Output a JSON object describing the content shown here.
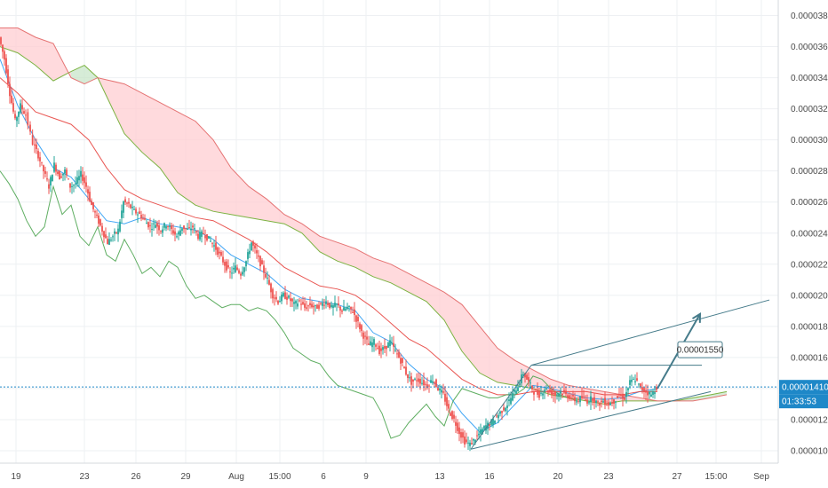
{
  "chart_data": {
    "type": "candlestick",
    "title": "",
    "xlabel": "",
    "ylabel": "",
    "ylim": [
      9.2e-06,
      3.9e-05
    ],
    "grid": true,
    "y_ticks": [
      "0.00003800",
      "0.00003600",
      "0.00003400",
      "0.00003200",
      "0.00003000",
      "0.00002800",
      "0.00002600",
      "0.00002400",
      "0.00002200",
      "0.00002000",
      "0.00001800",
      "0.00001600",
      "0.00001400",
      "0.00001200",
      "0.00001000"
    ],
    "x_ticks": [
      "19",
      "23",
      "26",
      "29",
      "Aug",
      "15:00",
      "6",
      "9",
      "13",
      "16",
      "20",
      "23",
      "27",
      "15:00",
      "Sep"
    ],
    "current_price": "0.00001410",
    "countdown": "01:33:53",
    "annotation_label": "0.00001550",
    "close_path": [
      [
        0,
        3.66e-05
      ],
      [
        6,
        3.52e-05
      ],
      [
        12,
        3.3e-05
      ],
      [
        18,
        3.12e-05
      ],
      [
        24,
        3.22e-05
      ],
      [
        30,
        3.16e-05
      ],
      [
        38,
        2.98e-05
      ],
      [
        44,
        2.9e-05
      ],
      [
        50,
        2.8e-05
      ],
      [
        56,
        2.7e-05
      ],
      [
        62,
        2.84e-05
      ],
      [
        68,
        2.76e-05
      ],
      [
        74,
        2.8e-05
      ],
      [
        80,
        2.7e-05
      ],
      [
        86,
        2.72e-05
      ],
      [
        92,
        2.78e-05
      ],
      [
        98,
        2.7e-05
      ],
      [
        104,
        2.58e-05
      ],
      [
        110,
        2.5e-05
      ],
      [
        116,
        2.42e-05
      ],
      [
        122,
        2.34e-05
      ],
      [
        128,
        2.38e-05
      ],
      [
        134,
        2.42e-05
      ],
      [
        140,
        2.6e-05
      ],
      [
        146,
        2.58e-05
      ],
      [
        152,
        2.54e-05
      ],
      [
        158,
        2.52e-05
      ],
      [
        164,
        2.48e-05
      ],
      [
        170,
        2.44e-05
      ],
      [
        176,
        2.46e-05
      ],
      [
        182,
        2.42e-05
      ],
      [
        188,
        2.46e-05
      ],
      [
        194,
        2.42e-05
      ],
      [
        200,
        2.38e-05
      ],
      [
        206,
        2.44e-05
      ],
      [
        212,
        2.42e-05
      ],
      [
        218,
        2.44e-05
      ],
      [
        224,
        2.38e-05
      ],
      [
        230,
        2.4e-05
      ],
      [
        236,
        2.36e-05
      ],
      [
        242,
        2.32e-05
      ],
      [
        248,
        2.26e-05
      ],
      [
        254,
        2.2e-05
      ],
      [
        260,
        2.14e-05
      ],
      [
        266,
        2.18e-05
      ],
      [
        272,
        2.14e-05
      ],
      [
        278,
        2.22e-05
      ],
      [
        284,
        2.34e-05
      ],
      [
        290,
        2.26e-05
      ],
      [
        296,
        2.18e-05
      ],
      [
        302,
        2.1e-05
      ],
      [
        308,
        2e-05
      ],
      [
        314,
        1.96e-05
      ],
      [
        320,
        2e-05
      ],
      [
        326,
        1.98e-05
      ],
      [
        332,
        1.94e-05
      ],
      [
        338,
        1.96e-05
      ],
      [
        344,
        1.92e-05
      ],
      [
        350,
        1.94e-05
      ],
      [
        356,
        1.92e-05
      ],
      [
        362,
        1.94e-05
      ],
      [
        368,
        1.96e-05
      ],
      [
        374,
        1.92e-05
      ],
      [
        380,
        1.94e-05
      ],
      [
        386,
        1.9e-05
      ],
      [
        392,
        1.92e-05
      ],
      [
        398,
        1.9e-05
      ],
      [
        404,
        1.82e-05
      ],
      [
        410,
        1.74e-05
      ],
      [
        416,
        1.68e-05
      ],
      [
        422,
        1.7e-05
      ],
      [
        428,
        1.64e-05
      ],
      [
        434,
        1.66e-05
      ],
      [
        440,
        1.7e-05
      ],
      [
        446,
        1.64e-05
      ],
      [
        452,
        1.58e-05
      ],
      [
        458,
        1.5e-05
      ],
      [
        464,
        1.44e-05
      ],
      [
        470,
        1.46e-05
      ],
      [
        476,
        1.44e-05
      ],
      [
        482,
        1.42e-05
      ],
      [
        488,
        1.46e-05
      ],
      [
        494,
        1.4e-05
      ],
      [
        500,
        1.36e-05
      ],
      [
        506,
        1.26e-05
      ],
      [
        512,
        1.2e-05
      ],
      [
        518,
        1.12e-05
      ],
      [
        524,
        1.06e-05
      ],
      [
        530,
        1.04e-05
      ],
      [
        536,
        1.08e-05
      ],
      [
        542,
        1.12e-05
      ],
      [
        548,
        1.16e-05
      ],
      [
        554,
        1.18e-05
      ],
      [
        560,
        1.22e-05
      ],
      [
        566,
        1.26e-05
      ],
      [
        572,
        1.3e-05
      ],
      [
        578,
        1.36e-05
      ],
      [
        584,
        1.42e-05
      ],
      [
        590,
        1.5e-05
      ],
      [
        596,
        1.44e-05
      ],
      [
        602,
        1.38e-05
      ],
      [
        608,
        1.36e-05
      ],
      [
        614,
        1.4e-05
      ],
      [
        620,
        1.38e-05
      ],
      [
        626,
        1.36e-05
      ],
      [
        632,
        1.38e-05
      ],
      [
        638,
        1.36e-05
      ],
      [
        644,
        1.34e-05
      ],
      [
        650,
        1.32e-05
      ],
      [
        656,
        1.34e-05
      ],
      [
        662,
        1.32e-05
      ],
      [
        668,
        1.34e-05
      ],
      [
        674,
        1.3e-05
      ],
      [
        680,
        1.32e-05
      ],
      [
        686,
        1.3e-05
      ],
      [
        692,
        1.32e-05
      ],
      [
        698,
        1.36e-05
      ],
      [
        704,
        1.34e-05
      ],
      [
        710,
        1.44e-05
      ],
      [
        716,
        1.46e-05
      ],
      [
        722,
        1.4e-05
      ],
      [
        728,
        1.38e-05
      ],
      [
        734,
        1.36e-05
      ],
      [
        740,
        1.41e-05
      ]
    ],
    "lines": [
      {
        "role": "tenkan",
        "color": "#2196f3",
        "points": [
          [
            0,
            3.52e-05
          ],
          [
            20,
            3.22e-05
          ],
          [
            40,
            3e-05
          ],
          [
            60,
            2.82e-05
          ],
          [
            80,
            2.76e-05
          ],
          [
            100,
            2.62e-05
          ],
          [
            120,
            2.48e-05
          ],
          [
            140,
            2.46e-05
          ],
          [
            160,
            2.5e-05
          ],
          [
            180,
            2.46e-05
          ],
          [
            200,
            2.44e-05
          ],
          [
            220,
            2.42e-05
          ],
          [
            240,
            2.36e-05
          ],
          [
            260,
            2.26e-05
          ],
          [
            280,
            2.2e-05
          ],
          [
            300,
            2.14e-05
          ],
          [
            320,
            2.04e-05
          ],
          [
            340,
            1.98e-05
          ],
          [
            360,
            1.96e-05
          ],
          [
            380,
            1.94e-05
          ],
          [
            400,
            1.9e-05
          ],
          [
            420,
            1.76e-05
          ],
          [
            440,
            1.7e-05
          ],
          [
            460,
            1.56e-05
          ],
          [
            480,
            1.46e-05
          ],
          [
            500,
            1.4e-05
          ],
          [
            520,
            1.24e-05
          ],
          [
            540,
            1.12e-05
          ],
          [
            560,
            1.18e-05
          ],
          [
            580,
            1.3e-05
          ],
          [
            600,
            1.42e-05
          ],
          [
            620,
            1.4e-05
          ],
          [
            640,
            1.37e-05
          ],
          [
            660,
            1.34e-05
          ],
          [
            680,
            1.33e-05
          ],
          [
            700,
            1.34e-05
          ],
          [
            720,
            1.38e-05
          ],
          [
            740,
            1.4e-05
          ]
        ]
      },
      {
        "role": "kijun",
        "color": "#e53935",
        "points": [
          [
            0,
            3.4e-05
          ],
          [
            20,
            3.3e-05
          ],
          [
            40,
            3.18e-05
          ],
          [
            60,
            3.14e-05
          ],
          [
            80,
            3.1e-05
          ],
          [
            100,
            3e-05
          ],
          [
            120,
            2.82e-05
          ],
          [
            140,
            2.68e-05
          ],
          [
            160,
            2.62e-05
          ],
          [
            180,
            2.58e-05
          ],
          [
            200,
            2.54e-05
          ],
          [
            220,
            2.5e-05
          ],
          [
            240,
            2.48e-05
          ],
          [
            260,
            2.42e-05
          ],
          [
            280,
            2.36e-05
          ],
          [
            300,
            2.28e-05
          ],
          [
            320,
            2.18e-05
          ],
          [
            340,
            2.12e-05
          ],
          [
            360,
            2.06e-05
          ],
          [
            380,
            2.04e-05
          ],
          [
            400,
            2e-05
          ],
          [
            420,
            1.92e-05
          ],
          [
            440,
            1.82e-05
          ],
          [
            460,
            1.72e-05
          ],
          [
            480,
            1.66e-05
          ],
          [
            500,
            1.56e-05
          ],
          [
            520,
            1.46e-05
          ],
          [
            540,
            1.4e-05
          ],
          [
            560,
            1.36e-05
          ],
          [
            580,
            1.36e-05
          ],
          [
            600,
            1.38e-05
          ],
          [
            620,
            1.38e-05
          ],
          [
            640,
            1.38e-05
          ],
          [
            660,
            1.38e-05
          ],
          [
            680,
            1.36e-05
          ],
          [
            700,
            1.36e-05
          ],
          [
            720,
            1.38e-05
          ],
          [
            740,
            1.38e-05
          ]
        ]
      },
      {
        "role": "chikou",
        "color": "#43a047",
        "points": [
          [
            0,
            2.8e-05
          ],
          [
            10,
            2.72e-05
          ],
          [
            20,
            2.62e-05
          ],
          [
            30,
            2.48e-05
          ],
          [
            40,
            2.38e-05
          ],
          [
            50,
            2.44e-05
          ],
          [
            60,
            2.7e-05
          ],
          [
            70,
            2.52e-05
          ],
          [
            80,
            2.58e-05
          ],
          [
            90,
            2.38e-05
          ],
          [
            100,
            2.32e-05
          ],
          [
            110,
            2.44e-05
          ],
          [
            120,
            2.26e-05
          ],
          [
            130,
            2.22e-05
          ],
          [
            140,
            2.36e-05
          ],
          [
            150,
            2.26e-05
          ],
          [
            160,
            2.14e-05
          ],
          [
            170,
            2.18e-05
          ],
          [
            180,
            2.12e-05
          ],
          [
            190,
            2.22e-05
          ],
          [
            200,
            2.18e-05
          ],
          [
            210,
            2.06e-05
          ],
          [
            220,
            1.98e-05
          ],
          [
            230,
            2e-05
          ],
          [
            240,
            1.96e-05
          ],
          [
            250,
            1.92e-05
          ],
          [
            260,
            1.94e-05
          ],
          [
            270,
            1.94e-05
          ],
          [
            280,
            1.9e-05
          ],
          [
            290,
            1.92e-05
          ],
          [
            300,
            1.9e-05
          ],
          [
            310,
            1.84e-05
          ],
          [
            320,
            1.76e-05
          ],
          [
            330,
            1.66e-05
          ],
          [
            340,
            1.62e-05
          ],
          [
            350,
            1.58e-05
          ],
          [
            360,
            1.56e-05
          ],
          [
            370,
            1.48e-05
          ],
          [
            380,
            1.42e-05
          ],
          [
            390,
            1.4e-05
          ],
          [
            400,
            1.38e-05
          ],
          [
            410,
            1.36e-05
          ],
          [
            420,
            1.34e-05
          ],
          [
            430,
            1.24e-05
          ],
          [
            440,
            1.08e-05
          ],
          [
            450,
            1.1e-05
          ],
          [
            460,
            1.18e-05
          ],
          [
            470,
            1.24e-05
          ],
          [
            480,
            1.3e-05
          ],
          [
            490,
            1.22e-05
          ],
          [
            500,
            1.16e-05
          ],
          [
            510,
            1.32e-05
          ],
          [
            520,
            1.4e-05
          ],
          [
            530,
            1.38e-05
          ],
          [
            540,
            1.36e-05
          ],
          [
            550,
            1.34e-05
          ],
          [
            560,
            1.34e-05
          ],
          [
            570,
            1.36e-05
          ],
          [
            580,
            1.36e-05
          ],
          [
            590,
            1.4e-05
          ],
          [
            600,
            1.48e-05
          ],
          [
            610,
            1.46e-05
          ],
          [
            620,
            1.4e-05
          ],
          [
            630,
            1.36e-05
          ],
          [
            640,
            1.34e-05
          ],
          [
            650,
            1.32e-05
          ]
        ]
      }
    ],
    "cloud": {
      "x": [
        0,
        20,
        40,
        60,
        80,
        95,
        110,
        125,
        140,
        160,
        180,
        200,
        220,
        240,
        260,
        280,
        300,
        320,
        340,
        360,
        380,
        400,
        420,
        440,
        460,
        480,
        500,
        520,
        540,
        560,
        580,
        600,
        620,
        640,
        660,
        680,
        700,
        720,
        740,
        760,
        780,
        800,
        818
      ],
      "span_a": [
        3.6e-05,
        3.56e-05,
        3.48e-05,
        3.38e-05,
        3.44e-05,
        3.48e-05,
        3.4e-05,
        3.22e-05,
        3.04e-05,
        2.92e-05,
        2.82e-05,
        2.66e-05,
        2.58e-05,
        2.54e-05,
        2.52e-05,
        2.5e-05,
        2.48e-05,
        2.46e-05,
        2.4e-05,
        2.28e-05,
        2.22e-05,
        2.18e-05,
        2.12e-05,
        2.08e-05,
        2.02e-05,
        1.96e-05,
        1.84e-05,
        1.64e-05,
        1.5e-05,
        1.44e-05,
        1.42e-05,
        1.4e-05,
        1.36e-05,
        1.34e-05,
        1.32e-05,
        1.3e-05,
        1.32e-05,
        1.32e-05,
        1.32e-05,
        1.32e-05,
        1.34e-05,
        1.36e-05,
        1.38e-05
      ],
      "span_b": [
        3.72e-05,
        3.72e-05,
        3.66e-05,
        3.62e-05,
        3.4e-05,
        3.36e-05,
        3.4e-05,
        3.38e-05,
        3.36e-05,
        3.3e-05,
        3.24e-05,
        3.18e-05,
        3.12e-05,
        3e-05,
        2.82e-05,
        2.7e-05,
        2.62e-05,
        2.52e-05,
        2.46e-05,
        2.38e-05,
        2.34e-05,
        2.3e-05,
        2.24e-05,
        2.2e-05,
        2.14e-05,
        2.08e-05,
        2.02e-05,
        1.94e-05,
        1.8e-05,
        1.66e-05,
        1.58e-05,
        1.52e-05,
        1.46e-05,
        1.42e-05,
        1.4e-05,
        1.38e-05,
        1.36e-05,
        1.34e-05,
        1.32e-05,
        1.32e-05,
        1.32e-05,
        1.34e-05,
        1.36e-05
      ]
    },
    "drawings": {
      "lower_trendline": [
        [
          530,
          1.01e-05
        ],
        [
          800,
          1.38e-05
        ]
      ],
      "upper_channel": [
        [
          598,
          1.55e-05
        ],
        [
          866,
          1.97e-05
        ]
      ],
      "left_trendline": [
        [
          530,
          1.01e-05
        ],
        [
          598,
          1.55e-05
        ]
      ],
      "horizontal_level": [
        [
          598,
          1.55e-05
        ],
        [
          790,
          1.55e-05
        ]
      ],
      "projection_arrow": [
        [
          740,
          1.4e-05
        ],
        [
          788,
          1.88e-05
        ]
      ]
    },
    "colors": {
      "up": "#26a69a",
      "down": "#ef5350",
      "cloud_bear": "#ffcdd2",
      "cloud_bull": "#c8e6c9",
      "drawing": "#457b8a",
      "price_line": "#1e88c8",
      "axis_text": "#4a4a4a",
      "grid": "#eef0f3"
    }
  }
}
